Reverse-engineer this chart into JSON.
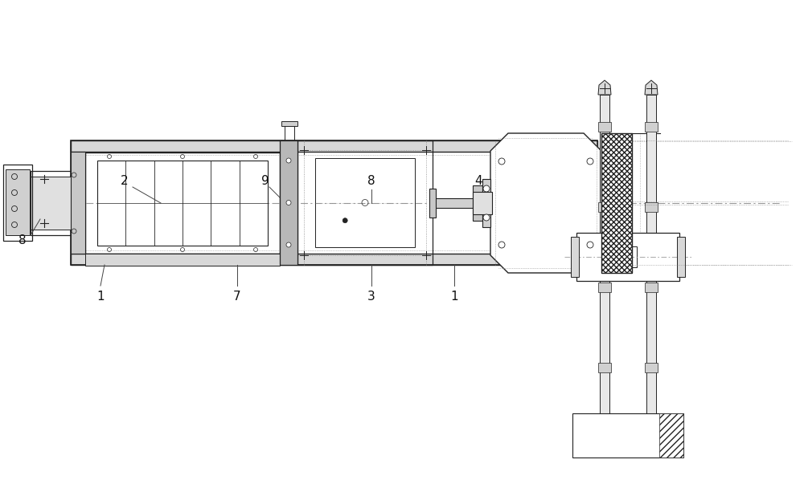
{
  "bg_color": "#ffffff",
  "lc": "#444444",
  "dc": "#222222",
  "gc": "#888888",
  "fig_width": 10.0,
  "fig_height": 6.08,
  "xlim": [
    0,
    10
  ],
  "ylim": [
    0,
    6.08
  ]
}
